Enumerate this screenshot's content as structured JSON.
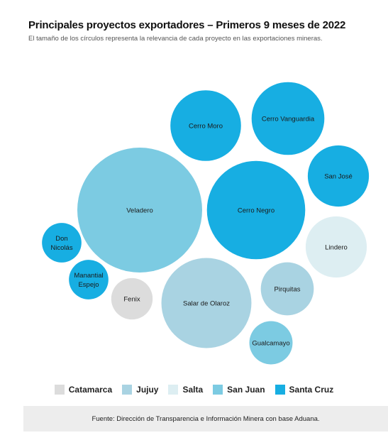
{
  "header": {
    "title": "Principales proyectos exportadores – Primeros 9 meses de 2022",
    "subtitle": "El tamaño de los círculos representa la relevancia de cada proyecto en las exportaciones mineras."
  },
  "colors": {
    "Catamarca": "#dcdcdc",
    "Jujuy": "#a9d3e2",
    "Salta": "#ddeef2",
    "San Juan": "#7ccbe2",
    "Santa Cruz": "#17aee2"
  },
  "chart_data": {
    "type": "bubble",
    "title": "Principales proyectos exportadores – Primeros 9 meses de 2022",
    "size_encodes": "relative_export_relevance",
    "projects": [
      {
        "name": "Veladero",
        "province": "San Juan",
        "relative_size": 1.0
      },
      {
        "name": "Cerro Negro",
        "province": "Santa Cruz",
        "relative_size": 0.62
      },
      {
        "name": "Salar de Olaroz",
        "province": "Jujuy",
        "relative_size": 0.52
      },
      {
        "name": "Cerro Vanguardia",
        "province": "Santa Cruz",
        "relative_size": 0.34
      },
      {
        "name": "Cerro Moro",
        "province": "Santa Cruz",
        "relative_size": 0.32
      },
      {
        "name": "Lindero",
        "province": "Salta",
        "relative_size": 0.24
      },
      {
        "name": "San José",
        "province": "Santa Cruz",
        "relative_size": 0.24
      },
      {
        "name": "Pirquitas",
        "province": "Jujuy",
        "relative_size": 0.18
      },
      {
        "name": "Gualcamayo",
        "province": "San Juan",
        "relative_size": 0.12
      },
      {
        "name": "Fenix",
        "province": "Catamarca",
        "relative_size": 0.11
      },
      {
        "name": "Manantial Espejo",
        "province": "Santa Cruz",
        "relative_size": 0.1
      },
      {
        "name": "Don Nicolás",
        "province": "Santa Cruz",
        "relative_size": 0.1
      }
    ]
  },
  "legend": [
    {
      "label": "Catamarca",
      "color": "#dcdcdc"
    },
    {
      "label": "Jujuy",
      "color": "#a9d3e2"
    },
    {
      "label": "Salta",
      "color": "#ddeef2"
    },
    {
      "label": "San Juan",
      "color": "#7ccbe2"
    },
    {
      "label": "Santa Cruz",
      "color": "#17aee2"
    }
  ],
  "source": "Fuente: Dirección de Transparencia e Información Minera con base Aduana."
}
